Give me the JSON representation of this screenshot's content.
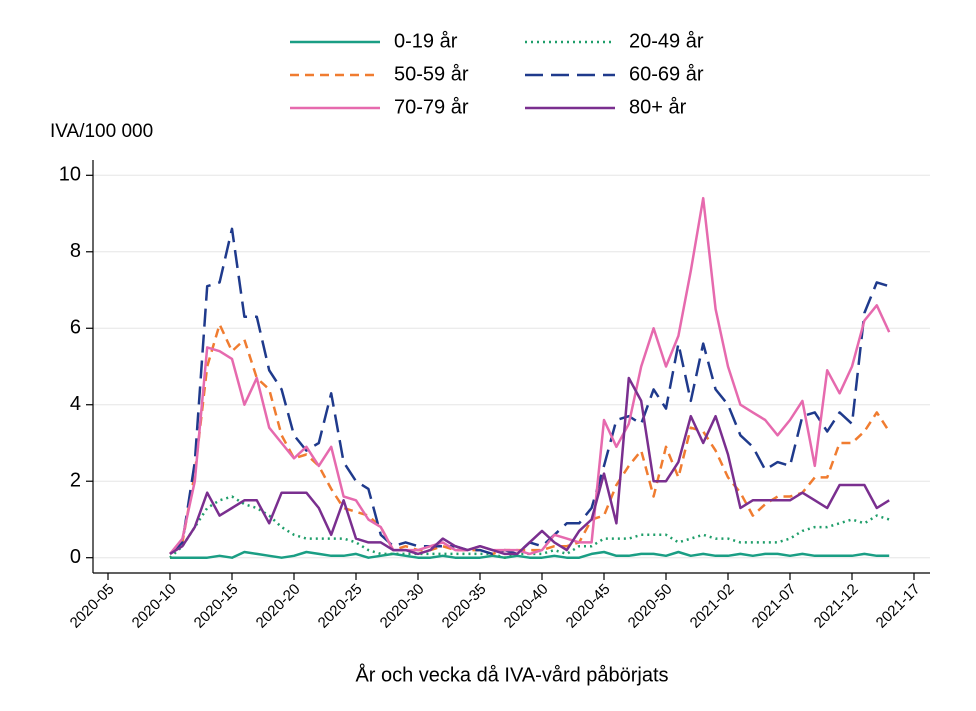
{
  "chart_data": {
    "type": "line",
    "y_axis_label": "IVA/100 000",
    "x_axis_label": "År och vecka då IVA-vård påbörjats",
    "categories": [
      "2020-05",
      null,
      null,
      null,
      null,
      "2020-10",
      null,
      null,
      null,
      null,
      "2020-15",
      null,
      null,
      null,
      null,
      "2020-20",
      null,
      null,
      null,
      null,
      "2020-25",
      null,
      null,
      null,
      null,
      "2020-30",
      null,
      null,
      null,
      null,
      "2020-35",
      null,
      null,
      null,
      null,
      "2020-40",
      null,
      null,
      null,
      null,
      "2020-45",
      null,
      null,
      null,
      null,
      "2020-50",
      null,
      null,
      null,
      null,
      "2021-02",
      null,
      null,
      null,
      null,
      "2021-07",
      null,
      null,
      null,
      null,
      "2021-12",
      null,
      null,
      null,
      null,
      "2021-17"
    ],
    "ylim": [
      -0.4,
      10.4
    ],
    "yticks": [
      0,
      2,
      4,
      6,
      8,
      10
    ],
    "grid": true,
    "legend": "top",
    "series": [
      {
        "name": "0-19 år",
        "color": "#1a9e84",
        "line_style": "solid",
        "values": [
          null,
          null,
          null,
          null,
          null,
          0,
          0,
          0,
          0,
          0.05,
          0,
          0.15,
          0.1,
          0.05,
          0,
          0.05,
          0.15,
          0.1,
          0.05,
          0.05,
          0.1,
          0,
          0.05,
          0.1,
          0.05,
          0,
          0,
          0.05,
          0,
          0,
          0,
          0.05,
          0,
          0.05,
          0,
          0,
          0.05,
          0,
          0,
          0.1,
          0.15,
          0.05,
          0.05,
          0.1,
          0.1,
          0.05,
          0.15,
          0.05,
          0.1,
          0.05,
          0.05,
          0.1,
          0.05,
          0.1,
          0.1,
          0.05,
          0.1,
          0.05,
          0.05,
          0.05,
          0.05,
          0.1,
          0.05,
          0.05,
          null,
          null
        ]
      },
      {
        "name": "20-49 år",
        "color": "#1f9e6a",
        "line_style": "dotted",
        "values": [
          null,
          null,
          null,
          null,
          null,
          0,
          0.3,
          0.8,
          1.3,
          1.5,
          1.6,
          1.4,
          1.3,
          1.1,
          0.8,
          0.6,
          0.5,
          0.5,
          0.5,
          0.5,
          0.4,
          0.2,
          0.1,
          0.1,
          0.1,
          0.1,
          0.1,
          0.1,
          0.1,
          0.1,
          0.1,
          0.1,
          0,
          0.1,
          0.1,
          0.1,
          0.2,
          0.1,
          0.3,
          0.3,
          0.5,
          0.5,
          0.5,
          0.6,
          0.6,
          0.6,
          0.4,
          0.5,
          0.6,
          0.5,
          0.5,
          0.4,
          0.4,
          0.4,
          0.4,
          0.5,
          0.7,
          0.8,
          0.8,
          0.9,
          1.0,
          0.9,
          1.1,
          1.0,
          null,
          null
        ]
      },
      {
        "name": "50-59 år",
        "color": "#f07c30",
        "line_style": "dashed",
        "values": [
          null,
          null,
          null,
          null,
          null,
          0.1,
          0.4,
          2.2,
          5.0,
          6.1,
          5.4,
          5.7,
          4.7,
          4.4,
          3.2,
          2.6,
          2.7,
          2.4,
          1.8,
          1.3,
          1.2,
          1.1,
          0.8,
          0.2,
          0.3,
          0.2,
          0.2,
          0.3,
          0.2,
          0.2,
          0.2,
          0.1,
          0.2,
          0.2,
          0.2,
          0.2,
          0.3,
          0.3,
          0.4,
          1.0,
          1.1,
          1.9,
          2.4,
          2.8,
          1.6,
          2.9,
          2.1,
          3.4,
          3.3,
          2.8,
          2.1,
          1.7,
          1.1,
          1.4,
          1.6,
          1.6,
          1.7,
          2.1,
          2.1,
          3.0,
          3.0,
          3.3,
          3.8,
          3.3,
          null,
          null
        ]
      },
      {
        "name": "60-69 år",
        "color": "#1f3a8c",
        "line_style": "longdash",
        "values": [
          null,
          null,
          null,
          null,
          null,
          0.1,
          0.4,
          2.5,
          7.1,
          7.2,
          8.6,
          6.3,
          6.3,
          4.9,
          4.4,
          3.2,
          2.8,
          3.0,
          4.3,
          2.5,
          2.0,
          1.8,
          0.6,
          0.3,
          0.4,
          0.3,
          0.3,
          0.3,
          0.3,
          0.2,
          0.2,
          0.1,
          0.2,
          0.1,
          0.4,
          0.3,
          0.6,
          0.9,
          0.9,
          1.3,
          2.4,
          3.6,
          3.7,
          3.5,
          4.4,
          3.9,
          5.6,
          4.1,
          5.6,
          4.4,
          4.0,
          3.2,
          2.9,
          2.3,
          2.5,
          2.4,
          3.7,
          3.8,
          3.3,
          3.8,
          3.5,
          6.4,
          7.2,
          7.1,
          null,
          null
        ]
      },
      {
        "name": "70-79 år",
        "color": "#e66aae",
        "line_style": "solid",
        "values": [
          null,
          null,
          null,
          null,
          null,
          0.1,
          0.5,
          2.0,
          5.5,
          5.4,
          5.2,
          4.0,
          4.7,
          3.4,
          3.0,
          2.6,
          2.9,
          2.4,
          2.9,
          1.6,
          1.5,
          1.0,
          0.8,
          0.2,
          0.2,
          0.2,
          0.3,
          0.4,
          0.2,
          0.2,
          0.3,
          0.2,
          0.2,
          0.2,
          0.1,
          0.2,
          0.6,
          0.5,
          0.4,
          0.4,
          3.6,
          2.9,
          3.5,
          5.0,
          6.0,
          5.0,
          5.8,
          7.5,
          9.4,
          6.5,
          5.0,
          4.0,
          3.8,
          3.6,
          3.2,
          3.6,
          4.1,
          2.4,
          4.9,
          4.3,
          5.0,
          6.2,
          6.6,
          5.9,
          null,
          null
        ]
      },
      {
        "name": "80+ år",
        "color": "#7a2f8f",
        "line_style": "solid",
        "values": [
          null,
          null,
          null,
          null,
          null,
          0.1,
          0.3,
          0.8,
          1.7,
          1.1,
          1.3,
          1.5,
          1.5,
          0.9,
          1.7,
          1.7,
          1.7,
          1.3,
          0.6,
          1.5,
          0.5,
          0.4,
          0.4,
          0.2,
          0.2,
          0.1,
          0.2,
          0.5,
          0.3,
          0.2,
          0.3,
          0.2,
          0.1,
          0.1,
          0.4,
          0.7,
          0.4,
          0.2,
          0.7,
          1.0,
          2.2,
          0.9,
          4.7,
          4.1,
          2.0,
          2.0,
          2.5,
          3.7,
          3.0,
          3.7,
          2.7,
          1.3,
          1.5,
          1.5,
          1.5,
          1.5,
          1.7,
          1.5,
          1.3,
          1.9,
          1.9,
          1.9,
          1.3,
          1.5,
          null,
          null
        ]
      }
    ]
  }
}
